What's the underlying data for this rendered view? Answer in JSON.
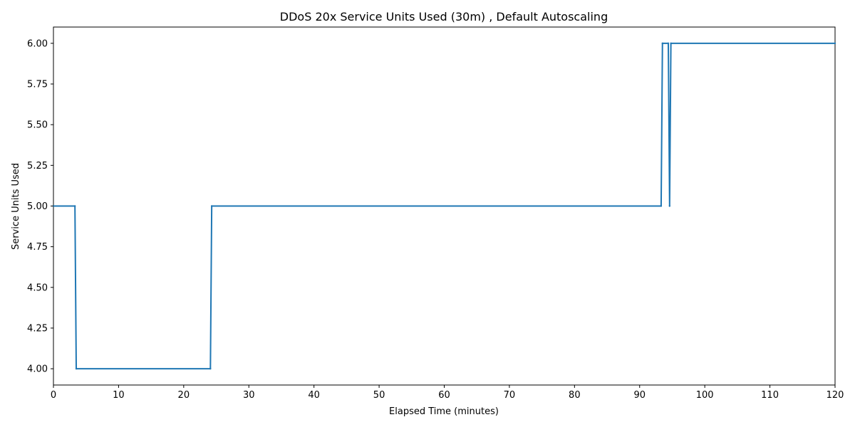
{
  "chart_data": {
    "type": "line",
    "title": "DDoS 20x Service Units Used (30m) , Default Autoscaling",
    "xlabel": "Elapsed Time (minutes)",
    "ylabel": "Service Units Used",
    "xlim": [
      0,
      120
    ],
    "ylim": [
      3.9,
      6.1
    ],
    "x_ticks": [
      0,
      10,
      20,
      30,
      40,
      50,
      60,
      70,
      80,
      90,
      100,
      110,
      120
    ],
    "y_ticks": [
      4.0,
      4.25,
      4.5,
      4.75,
      5.0,
      5.25,
      5.5,
      5.75,
      6.0
    ],
    "x_tick_labels": [
      "0",
      "10",
      "20",
      "30",
      "40",
      "50",
      "60",
      "70",
      "80",
      "90",
      "100",
      "110",
      "120"
    ],
    "y_tick_labels": [
      "4.00",
      "4.25",
      "4.50",
      "4.75",
      "5.00",
      "5.25",
      "5.50",
      "5.75",
      "6.00"
    ],
    "grid": false,
    "line_color": "#1f77b4",
    "series": [
      {
        "x": [
          0,
          3.3,
          3.5,
          24.1,
          24.3,
          93.3,
          93.5,
          94.4,
          94.6,
          94.8,
          120
        ],
        "values": [
          5,
          5,
          4,
          4,
          5,
          5,
          6,
          6,
          5,
          6,
          6
        ]
      }
    ]
  }
}
